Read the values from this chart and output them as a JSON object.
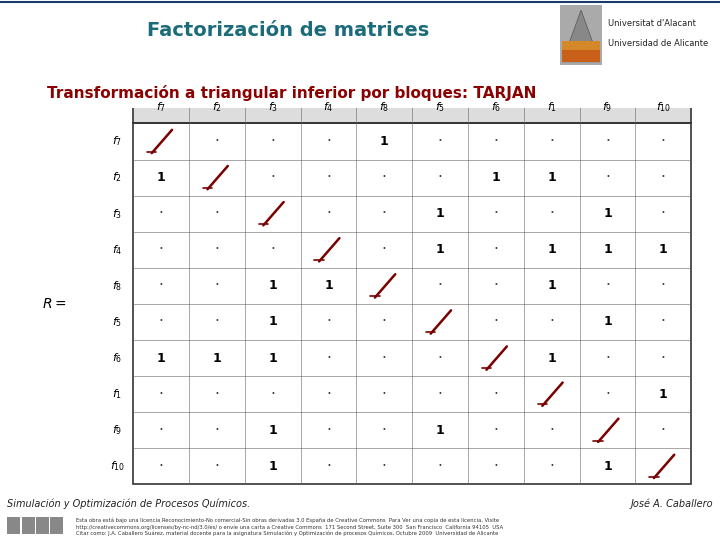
{
  "title": "Factorización de matrices",
  "subtitle": "Transformación a triangular inferior por bloques: TARJAN",
  "subtitle_color": "#8B0000",
  "title_color": "#1B6B7B",
  "footer_left": "Simulación y Optimización de Procesos Químicos.",
  "footer_right": "José A. Caballero",
  "col_labels": [
    "7",
    "2",
    "3",
    "4",
    "8",
    "5",
    "6",
    "1",
    "9",
    "10"
  ],
  "row_labels": [
    "7",
    "2",
    "3",
    "4",
    "8",
    "5",
    "6",
    "1",
    "9",
    "10"
  ],
  "matrix": [
    [
      "X",
      ".",
      ".",
      ".",
      "1",
      ".",
      ".",
      ".",
      ".",
      "."
    ],
    [
      "1",
      "X",
      ".",
      ".",
      ".",
      ".",
      "1",
      "1",
      ".",
      "."
    ],
    [
      ".",
      ".",
      "X",
      ".",
      ".",
      "1",
      ".",
      ".",
      "1",
      "."
    ],
    [
      ".",
      ".",
      ".",
      "X",
      ".",
      "1",
      ".",
      "1",
      "1",
      "1"
    ],
    [
      ".",
      ".",
      "1",
      "1",
      "X",
      ".",
      ".",
      "1",
      ".",
      "."
    ],
    [
      ".",
      ".",
      "1",
      ".",
      ".",
      "X",
      ".",
      ".",
      "1",
      "."
    ],
    [
      "1",
      "1",
      "1",
      ".",
      ".",
      ".",
      "X",
      "1",
      ".",
      "."
    ],
    [
      ".",
      ".",
      ".",
      ".",
      ".",
      ".",
      ".",
      "X",
      ".",
      "1"
    ],
    [
      ".",
      ".",
      "1",
      ".",
      ".",
      "1",
      ".",
      ".",
      "X",
      "."
    ],
    [
      ".",
      ".",
      "1",
      ".",
      ".",
      ".",
      ".",
      ".",
      "1",
      "X"
    ]
  ],
  "diagonal_color": "#7B0000",
  "one_color": "#000000",
  "dot_color": "#444444",
  "slide_bg": "#FFFFFF",
  "header_bar_color": "#1A3A6B",
  "matrix_header_bg": "#E8E8E8",
  "matrix_border_color": "#333333"
}
